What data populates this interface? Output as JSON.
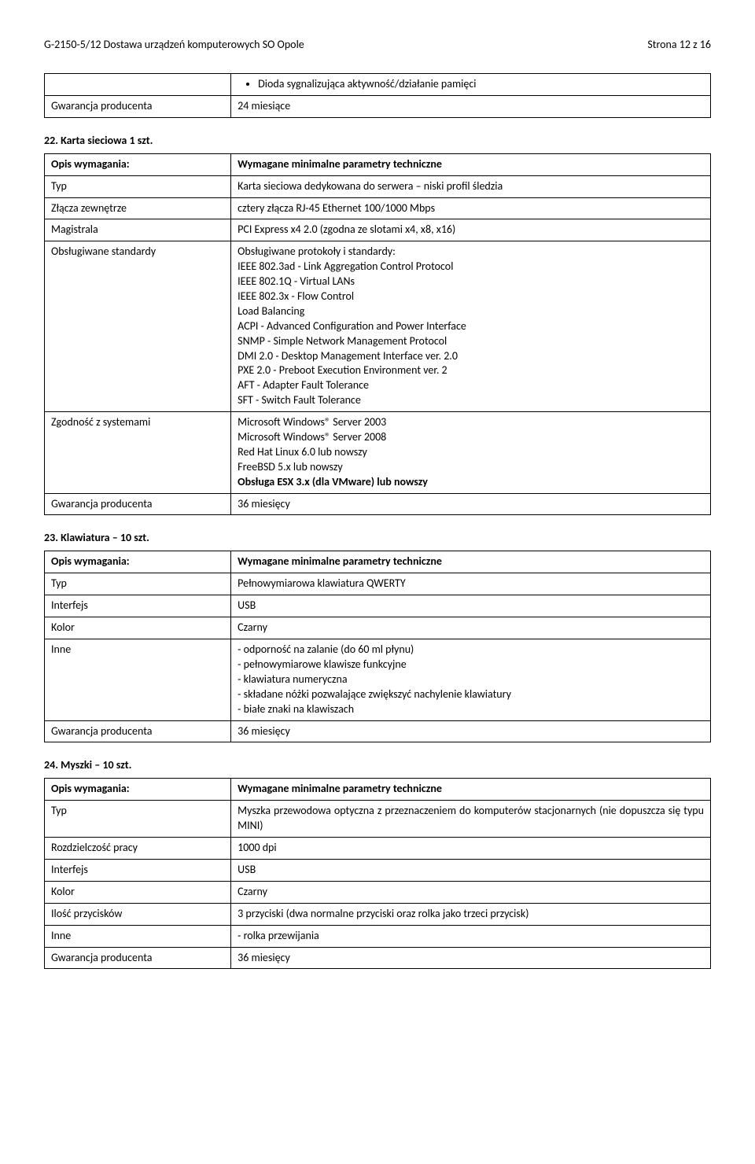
{
  "header": {
    "left": "G-2150-5/12 Dostawa urządzeń komputerowych SO Opole",
    "right": "Strona  12 z 16"
  },
  "table1": {
    "rows": [
      {
        "left": "",
        "right_bullet": "Dioda sygnalizująca aktywność/działanie pamięci"
      },
      {
        "left": "Gwarancja producenta",
        "right": "24 miesiące"
      }
    ]
  },
  "section22": {
    "heading": "22.  Karta sieciowa 1 szt.",
    "rows": [
      {
        "left_bold": "Opis wymagania:",
        "right_bold": "Wymagane minimalne parametry techniczne"
      },
      {
        "left": "Typ",
        "right": "Karta sieciowa dedykowana do serwera – niski profil śledzia"
      },
      {
        "left": "Złącza zewnętrze",
        "right": "cztery złącza RJ-45 Ethernet 100/1000 Mbps"
      },
      {
        "left": "Magistrala",
        "right": "PCI Express x4 2.0 (zgodna ze slotami x4, x8, x16)"
      },
      {
        "left": "Obsługiwane standardy",
        "right_lines": [
          "Obsługiwane protokoły i standardy:",
          "IEEE 802.3ad - Link Aggregation Control Protocol",
          "IEEE 802.1Q - Virtual LANs",
          "IEEE 802.3x - Flow Control",
          "Load Balancing",
          "ACPI - Advanced Configuration and Power Interface",
          "SNMP - Simple Network Management Protocol",
          "DMI 2.0 - Desktop Management Interface ver. 2.0",
          "PXE 2.0 - Preboot Execution Environment ver. 2",
          "AFT - Adapter Fault Tolerance",
          "SFT - Switch Fault Tolerance"
        ]
      },
      {
        "left": "Zgodność z systemami",
        "right_lines": [
          "Microsoft Windows® Server 2003",
          "Microsoft Windows® Server 2008",
          "Red Hat Linux 6.0 lub nowszy",
          "FreeBSD 5.x lub nowszy"
        ],
        "right_bold_line": "Obsługa ESX 3.x (dla VMware) lub nowszy"
      },
      {
        "left": "Gwarancja producenta",
        "right": "36 miesięcy"
      }
    ]
  },
  "section23": {
    "heading": "23.  Klawiatura – 10 szt.",
    "rows": [
      {
        "left_bold": "Opis wymagania:",
        "right_bold": "Wymagane minimalne parametry techniczne"
      },
      {
        "left": "Typ",
        "right": "Pełnowymiarowa klawiatura QWERTY"
      },
      {
        "left": "Interfejs",
        "right": "USB"
      },
      {
        "left": "Kolor",
        "right": "Czarny"
      },
      {
        "left": "Inne",
        "right_dashes": [
          "- odporność na zalanie (do 60 ml płynu)",
          "- pełnowymiarowe klawisze funkcyjne",
          "- klawiatura numeryczna",
          "- składane nóżki pozwalające zwiększyć nachylenie klawiatury",
          "- białe znaki na klawiszach"
        ]
      },
      {
        "left": "Gwarancja producenta",
        "right": "36 miesięcy"
      }
    ]
  },
  "section24": {
    "heading": "24.  Myszki – 10 szt.",
    "rows": [
      {
        "left_bold": "Opis wymagania:",
        "right_bold": "Wymagane minimalne parametry techniczne"
      },
      {
        "left": "Typ",
        "right_justify": "Myszka przewodowa optyczna z przeznaczeniem do komputerów stacjonarnych (nie dopuszcza się typu MINI)"
      },
      {
        "left": "Rozdzielczość pracy",
        "right": "1000 dpi"
      },
      {
        "left": "Interfejs",
        "right": "USB"
      },
      {
        "left": "Kolor",
        "right": "Czarny"
      },
      {
        "left": "Ilość przycisków",
        "right": "3 przyciski (dwa normalne przyciski oraz rolka jako trzeci przycisk)"
      },
      {
        "left": "Inne",
        "right": "- rolka przewijania"
      },
      {
        "left": "Gwarancja producenta",
        "right": "36 miesięcy"
      }
    ]
  }
}
